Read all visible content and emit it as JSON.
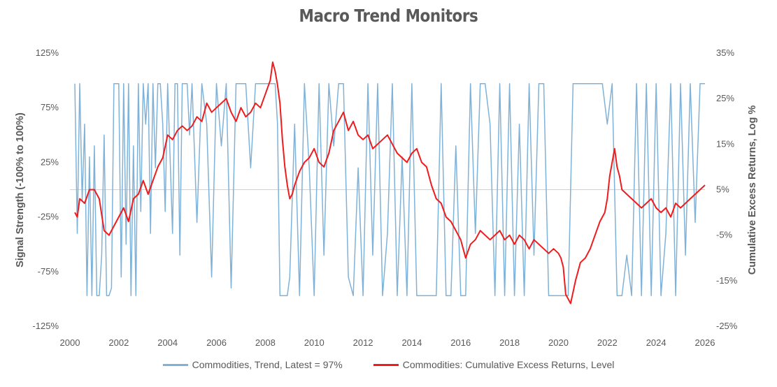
{
  "chart_data": {
    "type": "line",
    "title": "Macro Trend Monitors",
    "ylabel_left": "Signal Strength (-100% to 100%)",
    "ylabel_right": "Cumulative Excess Returns, Log %",
    "x_ticks": [
      "2000",
      "2002",
      "2004",
      "2006",
      "2008",
      "2010",
      "2012",
      "2014",
      "2016",
      "2018",
      "2020",
      "2022",
      "2024",
      "2026"
    ],
    "xlim": [
      2000,
      2026
    ],
    "left_ticks": [
      "125%",
      "75%",
      "25%",
      "-25%",
      "-75%",
      "-125%"
    ],
    "left_ylim": [
      -125,
      125
    ],
    "right_ticks": [
      "35%",
      "25%",
      "15%",
      "5%",
      "-5%",
      "-15%",
      "-25%"
    ],
    "right_ylim": [
      -25,
      35
    ],
    "grid": false,
    "legend_position": "bottom",
    "series": [
      {
        "name": "Commodities, Trend, Latest = 97%",
        "axis": "left",
        "color": "#7fb2d9",
        "x": [
          2000.2,
          2000.3,
          2000.4,
          2000.5,
          2000.6,
          2000.7,
          2000.8,
          2000.9,
          2001.0,
          2001.1,
          2001.2,
          2001.3,
          2001.4,
          2001.5,
          2001.6,
          2001.7,
          2001.8,
          2001.9,
          2002.0,
          2002.1,
          2002.2,
          2002.3,
          2002.4,
          2002.5,
          2002.6,
          2002.7,
          2002.8,
          2002.9,
          2003.0,
          2003.1,
          2003.2,
          2003.3,
          2003.4,
          2003.5,
          2003.6,
          2003.7,
          2003.8,
          2003.9,
          2004.0,
          2004.1,
          2004.2,
          2004.3,
          2004.4,
          2004.5,
          2004.6,
          2004.7,
          2004.8,
          2004.9,
          2005.0,
          2005.2,
          2005.4,
          2005.6,
          2005.8,
          2006.0,
          2006.2,
          2006.4,
          2006.6,
          2006.8,
          2007.0,
          2007.2,
          2007.4,
          2007.6,
          2007.8,
          2008.0,
          2008.2,
          2008.4,
          2008.5,
          2008.6,
          2008.7,
          2008.8,
          2008.9,
          2009.0,
          2009.2,
          2009.4,
          2009.6,
          2009.8,
          2010.0,
          2010.2,
          2010.4,
          2010.6,
          2010.8,
          2011.0,
          2011.2,
          2011.4,
          2011.6,
          2011.8,
          2012.0,
          2012.2,
          2012.4,
          2012.6,
          2012.8,
          2013.0,
          2013.2,
          2013.4,
          2013.6,
          2013.8,
          2014.0,
          2014.2,
          2014.4,
          2014.6,
          2014.8,
          2015.0,
          2015.2,
          2015.4,
          2015.6,
          2015.8,
          2016.0,
          2016.2,
          2016.4,
          2016.6,
          2016.8,
          2017.0,
          2017.2,
          2017.4,
          2017.6,
          2017.8,
          2018.0,
          2018.2,
          2018.4,
          2018.6,
          2018.8,
          2019.0,
          2019.2,
          2019.4,
          2019.6,
          2019.8,
          2020.0,
          2020.2,
          2020.4,
          2020.6,
          2020.8,
          2021.0,
          2021.2,
          2021.4,
          2021.6,
          2021.8,
          2022.0,
          2022.2,
          2022.4,
          2022.6,
          2022.8,
          2023.0,
          2023.2,
          2023.4,
          2023.6,
          2023.8,
          2024.0,
          2024.2,
          2024.4,
          2024.6,
          2024.8,
          2025.0,
          2025.2,
          2025.4,
          2025.6,
          2025.8,
          2026.0
        ],
        "values": [
          97,
          -40,
          97,
          -10,
          60,
          -97,
          30,
          -97,
          40,
          -97,
          -97,
          -60,
          50,
          -97,
          -97,
          -90,
          97,
          97,
          97,
          -80,
          97,
          -50,
          97,
          -97,
          40,
          -97,
          97,
          -20,
          97,
          60,
          97,
          -40,
          97,
          20,
          97,
          97,
          60,
          -20,
          97,
          30,
          -40,
          97,
          97,
          -60,
          97,
          97,
          97,
          50,
          97,
          -30,
          97,
          60,
          -80,
          97,
          40,
          97,
          -90,
          97,
          97,
          97,
          20,
          97,
          97,
          97,
          97,
          97,
          60,
          -97,
          -97,
          -97,
          -97,
          -80,
          60,
          -97,
          97,
          20,
          -97,
          97,
          -60,
          97,
          40,
          97,
          97,
          -80,
          -97,
          20,
          -97,
          97,
          -60,
          97,
          -97,
          -40,
          97,
          -97,
          30,
          -97,
          97,
          -97,
          -97,
          -97,
          -97,
          -97,
          97,
          -97,
          -97,
          40,
          -97,
          -97,
          97,
          -40,
          97,
          97,
          60,
          -97,
          97,
          -97,
          97,
          -97,
          60,
          -97,
          97,
          -60,
          97,
          97,
          -97,
          -97,
          -97,
          -97,
          -97,
          97,
          97,
          97,
          97,
          97,
          97,
          97,
          60,
          97,
          -97,
          -97,
          -60,
          -97,
          97,
          -97,
          97,
          -97,
          97,
          -97,
          -40,
          97,
          -97,
          97,
          -60,
          97,
          -30,
          97,
          97
        ]
      },
      {
        "name": "Commodities: Cumulative Excess Returns, Level",
        "axis": "right",
        "color": "#ee1c1c",
        "x": [
          2000.2,
          2000.3,
          2000.4,
          2000.6,
          2000.8,
          2001.0,
          2001.2,
          2001.4,
          2001.6,
          2001.8,
          2002.0,
          2002.2,
          2002.4,
          2002.6,
          2002.8,
          2003.0,
          2003.2,
          2003.4,
          2003.6,
          2003.8,
          2004.0,
          2004.2,
          2004.4,
          2004.6,
          2004.8,
          2005.0,
          2005.2,
          2005.4,
          2005.6,
          2005.8,
          2006.0,
          2006.2,
          2006.4,
          2006.6,
          2006.8,
          2007.0,
          2007.2,
          2007.4,
          2007.6,
          2007.8,
          2008.0,
          2008.2,
          2008.3,
          2008.4,
          2008.5,
          2008.6,
          2008.7,
          2008.8,
          2008.9,
          2009.0,
          2009.1,
          2009.2,
          2009.4,
          2009.6,
          2009.8,
          2010.0,
          2010.2,
          2010.4,
          2010.6,
          2010.8,
          2011.0,
          2011.2,
          2011.4,
          2011.6,
          2011.8,
          2012.0,
          2012.2,
          2012.4,
          2012.6,
          2012.8,
          2013.0,
          2013.2,
          2013.4,
          2013.6,
          2013.8,
          2014.0,
          2014.2,
          2014.4,
          2014.6,
          2014.8,
          2015.0,
          2015.2,
          2015.4,
          2015.6,
          2015.8,
          2016.0,
          2016.2,
          2016.4,
          2016.6,
          2016.8,
          2017.0,
          2017.2,
          2017.4,
          2017.6,
          2017.8,
          2018.0,
          2018.2,
          2018.4,
          2018.6,
          2018.8,
          2019.0,
          2019.2,
          2019.4,
          2019.6,
          2019.8,
          2020.0,
          2020.1,
          2020.2,
          2020.3,
          2020.5,
          2020.7,
          2020.9,
          2021.1,
          2021.3,
          2021.5,
          2021.7,
          2021.9,
          2022.0,
          2022.1,
          2022.2,
          2022.3,
          2022.4,
          2022.5,
          2022.6,
          2022.8,
          2023.0,
          2023.2,
          2023.4,
          2023.6,
          2023.8,
          2024.0,
          2024.2,
          2024.4,
          2024.6,
          2024.8,
          2025.0,
          2025.2,
          2025.4,
          2025.6,
          2025.8,
          2026.0
        ],
        "values": [
          0,
          -1,
          3,
          2,
          5,
          5,
          3,
          -4,
          -5,
          -3,
          -1,
          1,
          -2,
          3,
          4,
          7,
          4,
          7,
          10,
          12,
          17,
          16,
          18,
          19,
          18,
          19,
          21,
          20,
          24,
          22,
          23,
          24,
          25,
          22,
          20,
          23,
          21,
          22,
          24,
          23,
          26,
          29,
          33,
          31,
          28,
          24,
          16,
          10,
          6,
          3,
          4,
          6,
          9,
          11,
          12,
          14,
          11,
          10,
          13,
          18,
          20,
          22,
          18,
          20,
          17,
          16,
          17,
          14,
          15,
          16,
          17,
          15,
          13,
          12,
          11,
          13,
          14,
          11,
          10,
          6,
          3,
          2,
          -1,
          -2,
          -4,
          -6,
          -10,
          -7,
          -6,
          -4,
          -5,
          -6,
          -5,
          -4,
          -6,
          -5,
          -7,
          -5,
          -6,
          -8,
          -6,
          -7,
          -8,
          -9,
          -8,
          -9,
          -10,
          -12,
          -18,
          -20,
          -15,
          -11,
          -10,
          -8,
          -5,
          -2,
          0,
          3,
          8,
          11,
          14,
          10,
          8,
          5,
          4,
          3,
          2,
          1,
          2,
          3,
          1,
          0,
          1,
          -1,
          2,
          1,
          2,
          3,
          4,
          5,
          6
        ]
      }
    ]
  }
}
